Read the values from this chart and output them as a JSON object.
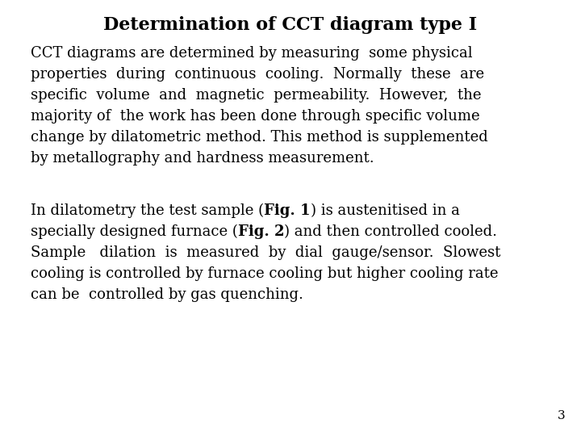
{
  "title": "Determination of CCT diagram type I",
  "background_color": "#ffffff",
  "title_fontsize": 16,
  "title_fontweight": "bold",
  "title_color": "#000000",
  "body_fontsize": 13.0,
  "body_color": "#000000",
  "page_number": "3",
  "paragraph1_lines": [
    "CCT diagrams are determined by measuring  some physical",
    "properties  during  continuous  cooling.  Normally  these  are",
    "specific  volume  and  magnetic  permeability.  However,  the",
    "majority of  the work has been done through specific volume",
    "change by dilatometric method. This method is supplemented",
    "by metallography and hardness measurement."
  ],
  "paragraph2_lines": [
    [
      {
        "text": "In dilatometry the test sample (",
        "bold": false
      },
      {
        "text": "Fig. 1",
        "bold": true
      },
      {
        "text": ") is austenitised in a",
        "bold": false
      }
    ],
    [
      {
        "text": "specially designed furnace (",
        "bold": false
      },
      {
        "text": "Fig. 2",
        "bold": true
      },
      {
        "text": ") and then controlled cooled.",
        "bold": false
      }
    ],
    [
      {
        "text": "Sample   dilation  is  measured  by  dial  gauge/sensor.  Slowest",
        "bold": false
      }
    ],
    [
      {
        "text": "cooling is controlled by furnace cooling but higher cooling rate",
        "bold": false
      }
    ],
    [
      {
        "text": "can be  controlled by gas quenching.",
        "bold": false
      }
    ]
  ]
}
